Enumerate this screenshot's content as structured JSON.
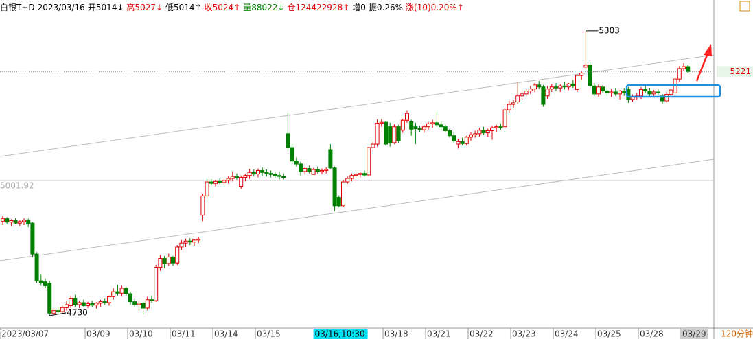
{
  "chart_data": {
    "type": "candlestick",
    "header": {
      "title": "白银T+D",
      "date": "2023/03/16",
      "items": [
        {
          "text": "开5014↓",
          "color": "#000000"
        },
        {
          "text": "高5027↓",
          "color": "#e00000"
        },
        {
          "text": "低5014↑",
          "color": "#000000"
        },
        {
          "text": "收5024↑",
          "color": "#e00000"
        },
        {
          "text": "量88022↓",
          "color": "#008000"
        },
        {
          "text": "仓124422928↑",
          "color": "#e00000"
        },
        {
          "text": "增0",
          "color": "#000000"
        },
        {
          "text": "振0.26%",
          "color": "#000000"
        },
        {
          "text": "涨(10)0.20%↑",
          "color": "#e00000"
        }
      ]
    },
    "period": "120分钟",
    "cursor_label": "03/16,10:30",
    "up_color": "#e00000",
    "down_color": "#008000",
    "ylim": [
      4705,
      5365
    ],
    "yticks": [
      {
        "value": 5001.92,
        "label": "5001.92"
      }
    ],
    "categories": [
      "2023/03/07",
      null,
      null,
      null,
      null,
      null,
      null,
      null,
      null,
      null,
      null,
      null,
      null,
      null,
      null,
      null,
      null,
      null,
      null,
      null,
      "03/09",
      null,
      null,
      null,
      null,
      null,
      null,
      null,
      null,
      null,
      "03/10",
      null,
      null,
      null,
      null,
      null,
      null,
      null,
      null,
      null,
      "03/11",
      null,
      null,
      null,
      null,
      null,
      null,
      null,
      null,
      null,
      "03/14",
      null,
      null,
      null,
      null,
      null,
      null,
      null,
      null,
      null,
      "03/15",
      null,
      null,
      null,
      null,
      null,
      null,
      null,
      null,
      null,
      null,
      null,
      null,
      null,
      null,
      null,
      null,
      null,
      null,
      null,
      null,
      null,
      null,
      null,
      null,
      null,
      null,
      null,
      null,
      null,
      "03/18",
      null,
      null,
      null,
      null,
      null,
      null,
      null,
      null,
      null,
      "03/21",
      null,
      null,
      null,
      null,
      null,
      null,
      null,
      null,
      null,
      "03/22",
      null,
      null,
      null,
      null,
      null,
      null,
      null,
      null,
      null,
      "03/23",
      null,
      null,
      null,
      null,
      null,
      null,
      null,
      null,
      null,
      "03/24",
      null,
      null,
      null,
      null,
      null,
      null,
      null,
      null,
      null,
      "03/25",
      null,
      null,
      null,
      null,
      null,
      null,
      null,
      null,
      null,
      "03/28",
      null,
      null,
      null,
      null,
      null,
      null,
      null,
      null,
      null,
      "03/29",
      null
    ],
    "candles": [
      [
        4920,
        4930,
        4912,
        4925
      ],
      [
        4925,
        4928,
        4915,
        4918
      ],
      [
        4918,
        4924,
        4910,
        4921
      ],
      [
        4921,
        4926,
        4914,
        4916
      ],
      [
        4916,
        4922,
        4910,
        4919
      ],
      [
        4919,
        4926,
        4912,
        4922
      ],
      [
        4922,
        4925,
        4908,
        4915
      ],
      [
        4916,
        4918,
        4848,
        4854
      ],
      [
        4854,
        4858,
        4795,
        4800
      ],
      [
        4800,
        4812,
        4790,
        4796
      ],
      [
        4798,
        4805,
        4785,
        4790
      ],
      [
        4795,
        4800,
        4730,
        4735
      ],
      [
        4735,
        4745,
        4730,
        4740
      ],
      [
        4740,
        4748,
        4733,
        4738
      ],
      [
        4738,
        4750,
        4735,
        4746
      ],
      [
        4746,
        4760,
        4740,
        4752
      ],
      [
        4750,
        4770,
        4745,
        4765
      ],
      [
        4765,
        4772,
        4748,
        4752
      ],
      [
        4752,
        4760,
        4745,
        4756
      ],
      [
        4756,
        4762,
        4748,
        4750
      ],
      [
        4750,
        4758,
        4745,
        4754
      ],
      [
        4754,
        4760,
        4748,
        4751
      ],
      [
        4751,
        4757,
        4744,
        4755
      ],
      [
        4755,
        4762,
        4748,
        4758
      ],
      [
        4758,
        4765,
        4752,
        4756
      ],
      [
        4756,
        4770,
        4750,
        4768
      ],
      [
        4768,
        4785,
        4762,
        4778
      ],
      [
        4778,
        4792,
        4770,
        4775
      ],
      [
        4775,
        4790,
        4768,
        4785
      ],
      [
        4785,
        4788,
        4770,
        4774
      ],
      [
        4774,
        4778,
        4752,
        4758
      ],
      [
        4758,
        4765,
        4748,
        4752
      ],
      [
        4752,
        4760,
        4740,
        4755
      ],
      [
        4755,
        4758,
        4732,
        4745
      ],
      [
        4745,
        4768,
        4740,
        4762
      ],
      [
        4762,
        4770,
        4756,
        4760
      ],
      [
        4760,
        4832,
        4758,
        4827
      ],
      [
        4827,
        4852,
        4820,
        4845
      ],
      [
        4845,
        4850,
        4825,
        4835
      ],
      [
        4835,
        4855,
        4830,
        4848
      ],
      [
        4848,
        4850,
        4830,
        4836
      ],
      [
        4836,
        4872,
        4832,
        4868
      ],
      [
        4868,
        4882,
        4862,
        4876
      ],
      [
        4876,
        4885,
        4868,
        4880
      ],
      [
        4880,
        4886,
        4872,
        4878
      ],
      [
        4878,
        4884,
        4870,
        4882
      ],
      [
        4882,
        4888,
        4876,
        4884
      ],
      [
        4932,
        4975,
        4920,
        4971
      ],
      [
        4971,
        5005,
        4965,
        4999
      ],
      [
        4999,
        5005,
        4992,
        4996
      ],
      [
        4996,
        5003,
        4990,
        5000
      ],
      [
        5000,
        5006,
        4994,
        4998
      ],
      [
        4998,
        5004,
        4992,
        5002
      ],
      [
        5002,
        5010,
        4996,
        5006
      ],
      [
        5006,
        5020,
        5000,
        5010
      ],
      [
        5010,
        5016,
        5002,
        5008
      ],
      [
        4990,
        5012,
        4985,
        5008
      ],
      [
        5008,
        5015,
        5000,
        5012
      ],
      [
        5012,
        5025,
        5005,
        5018
      ],
      [
        5018,
        5024,
        5010,
        5015
      ],
      [
        5015,
        5026,
        5008,
        5022
      ],
      [
        5022,
        5028,
        5012,
        5018
      ],
      [
        5018,
        5024,
        5010,
        5016
      ],
      [
        5016,
        5022,
        5008,
        5014
      ],
      [
        5014,
        5020,
        5006,
        5012
      ],
      [
        5012,
        5018,
        5004,
        5010
      ],
      [
        5010,
        5016,
        5004,
        5008
      ],
      [
        5096,
        5137,
        5060,
        5068
      ],
      [
        5068,
        5075,
        5035,
        5041
      ],
      [
        5041,
        5048,
        5030,
        5035
      ],
      [
        5035,
        5040,
        5012,
        5020
      ],
      [
        5020,
        5030,
        5014,
        5026
      ],
      [
        5026,
        5032,
        5016,
        5020
      ],
      [
        5014,
        5027,
        5014,
        5024
      ],
      [
        5024,
        5030,
        5016,
        5020
      ],
      [
        5020,
        5026,
        5014,
        5022
      ],
      [
        5022,
        5028,
        5016,
        5024
      ],
      [
        5064,
        5075,
        5025,
        5027
      ],
      [
        5027,
        5030,
        4940,
        4951
      ],
      [
        4968,
        4972,
        4948,
        4951
      ],
      [
        4951,
        5003,
        4948,
        4999
      ],
      [
        4999,
        5010,
        4995,
        5006
      ],
      [
        5006,
        5016,
        5000,
        5012
      ],
      [
        5012,
        5018,
        5006,
        5014
      ],
      [
        5014,
        5020,
        5008,
        5016
      ],
      [
        5016,
        5022,
        5010,
        5013
      ],
      [
        5013,
        5070,
        5010,
        5068
      ],
      [
        5068,
        5080,
        5060,
        5075
      ],
      [
        5075,
        5125,
        5070,
        5117
      ],
      [
        5117,
        5125,
        5110,
        5119
      ],
      [
        5119,
        5122,
        5072,
        5075
      ],
      [
        5110,
        5118,
        5070,
        5078
      ],
      [
        5078,
        5115,
        5075,
        5110
      ],
      [
        5110,
        5114,
        5078,
        5082
      ],
      [
        5103,
        5126,
        5098,
        5123
      ],
      [
        5123,
        5142,
        5118,
        5137
      ],
      [
        5120,
        5124,
        5092,
        5105
      ],
      [
        5110,
        5118,
        5075,
        5106
      ],
      [
        5106,
        5112,
        5100,
        5104
      ],
      [
        5104,
        5114,
        5098,
        5110
      ],
      [
        5110,
        5120,
        5104,
        5116
      ],
      [
        5116,
        5124,
        5108,
        5118
      ],
      [
        5118,
        5140,
        5110,
        5114
      ],
      [
        5114,
        5120,
        5104,
        5110
      ],
      [
        5110,
        5114,
        5098,
        5102
      ],
      [
        5102,
        5106,
        5088,
        5092
      ],
      [
        5092,
        5100,
        5078,
        5082
      ],
      [
        5075,
        5086,
        5066,
        5080
      ],
      [
        5080,
        5088,
        5072,
        5076
      ],
      [
        5076,
        5092,
        5072,
        5089
      ],
      [
        5089,
        5100,
        5082,
        5094
      ],
      [
        5094,
        5102,
        5088,
        5096
      ],
      [
        5096,
        5108,
        5090,
        5103
      ],
      [
        5103,
        5110,
        5094,
        5098
      ],
      [
        5098,
        5106,
        5090,
        5102
      ],
      [
        5102,
        5112,
        5084,
        5108
      ],
      [
        5108,
        5114,
        5100,
        5110
      ],
      [
        5110,
        5116,
        5104,
        5108
      ],
      [
        5110,
        5148,
        5106,
        5144
      ],
      [
        5144,
        5162,
        5138,
        5155
      ],
      [
        5155,
        5164,
        5148,
        5158
      ],
      [
        5160,
        5199,
        5156,
        5172
      ],
      [
        5172,
        5180,
        5165,
        5176
      ],
      [
        5176,
        5186,
        5168,
        5182
      ],
      [
        5182,
        5192,
        5176,
        5186
      ],
      [
        5186,
        5198,
        5180,
        5194
      ],
      [
        5194,
        5202,
        5186,
        5190
      ],
      [
        5190,
        5194,
        5150,
        5155
      ],
      [
        5172,
        5192,
        5166,
        5186
      ],
      [
        5186,
        5196,
        5180,
        5190
      ],
      [
        5190,
        5198,
        5182,
        5188
      ],
      [
        5188,
        5196,
        5180,
        5192
      ],
      [
        5192,
        5200,
        5185,
        5190
      ],
      [
        5190,
        5198,
        5184,
        5196
      ],
      [
        5196,
        5204,
        5188,
        5192
      ],
      [
        5185,
        5215,
        5180,
        5213
      ],
      [
        5213,
        5222,
        5205,
        5218
      ],
      [
        5230,
        5303,
        5225,
        5234
      ],
      [
        5234,
        5240,
        5188,
        5192
      ],
      [
        5192,
        5198,
        5172,
        5176
      ],
      [
        5176,
        5195,
        5170,
        5190
      ],
      [
        5190,
        5194,
        5178,
        5182
      ],
      [
        5182,
        5188,
        5172,
        5178
      ],
      [
        5178,
        5186,
        5170,
        5180
      ],
      [
        5180,
        5188,
        5172,
        5176
      ],
      [
        5176,
        5184,
        5165,
        5182
      ],
      [
        5182,
        5188,
        5172,
        5178
      ],
      [
        5185,
        5190,
        5158,
        5165
      ],
      [
        5165,
        5175,
        5160,
        5170
      ],
      [
        5170,
        5178,
        5164,
        5172
      ],
      [
        5172,
        5190,
        5166,
        5185
      ],
      [
        5185,
        5192,
        5178,
        5182
      ],
      [
        5182,
        5188,
        5172,
        5176
      ],
      [
        5176,
        5184,
        5170,
        5180
      ],
      [
        5180,
        5186,
        5174,
        5178
      ],
      [
        5172,
        5176,
        5156,
        5162
      ],
      [
        5162,
        5180,
        5158,
        5175
      ],
      [
        5175,
        5186,
        5170,
        5184
      ],
      [
        5178,
        5210,
        5175,
        5206
      ],
      [
        5206,
        5232,
        5200,
        5227
      ],
      [
        5227,
        5238,
        5222,
        5231
      ],
      [
        5231,
        5234,
        5218,
        5221
      ]
    ]
  }
}
